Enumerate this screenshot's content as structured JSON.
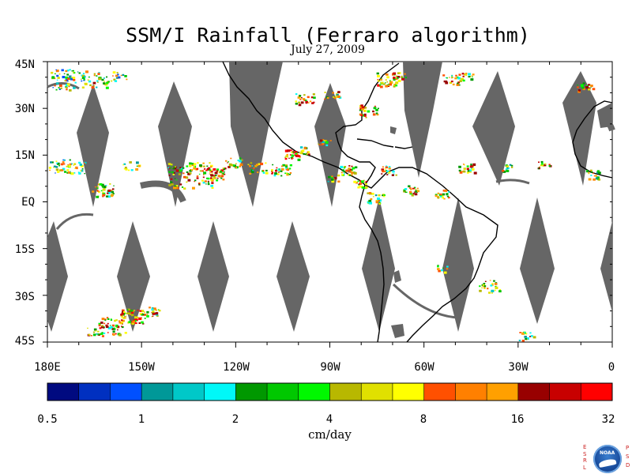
{
  "title": "SSM/I Rainfall (Ferraro algorithm)",
  "date": "July 27, 2009",
  "map": {
    "lon_range": [
      -180,
      0
    ],
    "lat_range": [
      -45,
      45
    ],
    "lat_labels": [
      "45N",
      "30N",
      "15N",
      "EQ",
      "15S",
      "30S",
      "45S"
    ],
    "lon_labels": [
      "180E",
      "150W",
      "120W",
      "90W",
      "60W",
      "30W",
      "0"
    ],
    "swath_gap_color": "#666666",
    "coastline_color": "#000000"
  },
  "colorbar": {
    "colors": [
      "#000a80",
      "#0030c0",
      "#0050ff",
      "#009898",
      "#00c8c8",
      "#00f8f8",
      "#009800",
      "#00c800",
      "#00f800",
      "#b8b800",
      "#e0e000",
      "#ffff00",
      "#ff5000",
      "#ff8000",
      "#ffa000",
      "#980000",
      "#c80000",
      "#ff0000"
    ],
    "tick_labels": [
      "0.5",
      "1",
      "2",
      "4",
      "8",
      "16",
      "32"
    ],
    "unit": "cm/day"
  },
  "logo": {
    "left_letters": "E S R L",
    "right_letters": "P S D",
    "center_text": "NOAA"
  }
}
